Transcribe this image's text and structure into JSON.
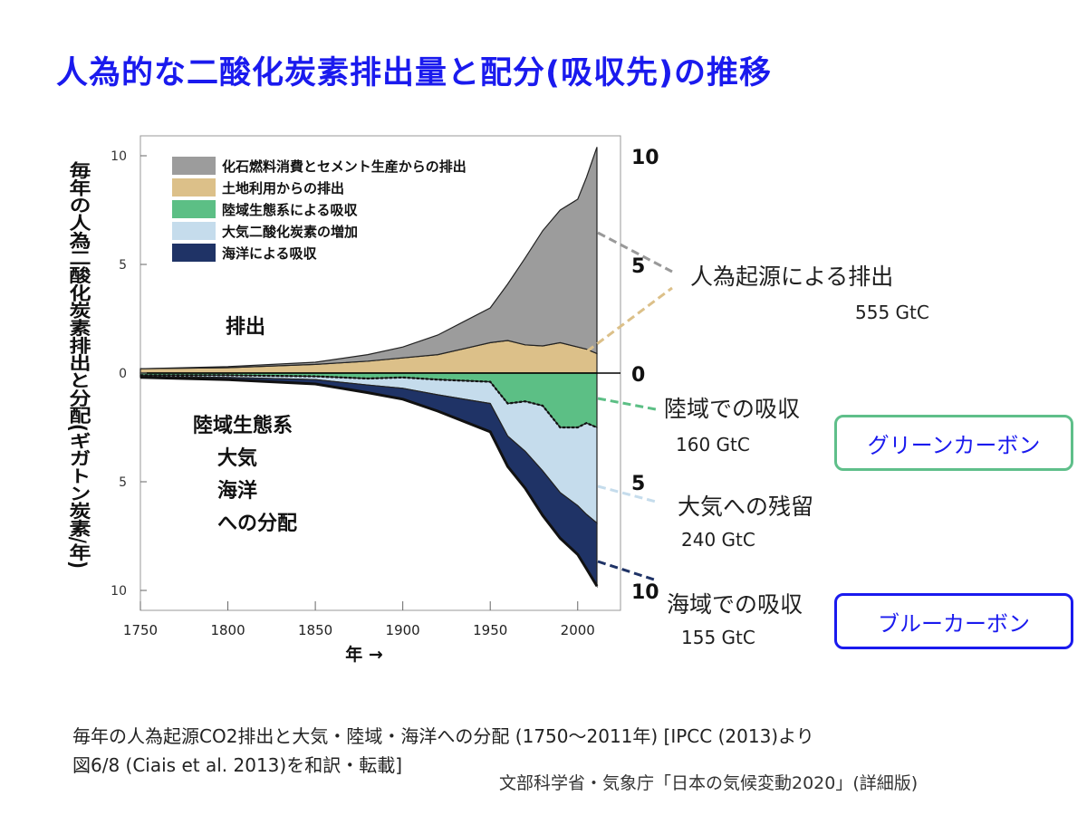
{
  "title": "人為的な二酸化炭素排出量と配分(吸収先)の推移",
  "chart_data": {
    "type": "area",
    "ylabel": "毎年の人為二酸化炭素排出と分配(ギガトン炭素/年)",
    "xlabel": "年 →",
    "xlim": [
      1750,
      2011
    ],
    "ylim": [
      -10,
      10
    ],
    "x_ticks": [
      "1750",
      "1800",
      "1850",
      "1900",
      "1950",
      "2000"
    ],
    "y_ticks_left": [
      "10",
      "5",
      "0",
      "5",
      "10"
    ],
    "y_ticks_right": [
      "10",
      "5",
      "0",
      "5",
      "10"
    ],
    "legend": [
      {
        "label": "化石燃料消費とセメント生産からの排出",
        "color": "#9c9c9c"
      },
      {
        "label": "土地利用からの排出",
        "color": "#dcc089"
      },
      {
        "label": "陸域生態系による吸収",
        "color": "#5cbf85"
      },
      {
        "label": "大気二酸化炭素の増加",
        "color": "#c5dcec"
      },
      {
        "label": "海洋による吸収",
        "color": "#1f3366"
      }
    ],
    "legend_position": "top-left",
    "region_labels": {
      "emission": "排出",
      "allocation": [
        "陸域生態系",
        "大気",
        "海洋",
        "への分配"
      ]
    },
    "x": [
      1750,
      1800,
      1850,
      1880,
      1900,
      1920,
      1950,
      1960,
      1970,
      1980,
      1990,
      2000,
      2005,
      2011
    ],
    "series": [
      {
        "name": "化石燃料消費とセメント生産からの排出",
        "values": [
          0.0,
          0.05,
          0.1,
          0.3,
          0.5,
          0.9,
          1.6,
          2.6,
          4.0,
          5.3,
          6.1,
          6.8,
          7.9,
          9.5
        ]
      },
      {
        "name": "土地利用からの排出",
        "values": [
          0.2,
          0.25,
          0.4,
          0.55,
          0.7,
          0.85,
          1.4,
          1.5,
          1.3,
          1.25,
          1.4,
          1.2,
          1.1,
          0.9
        ]
      },
      {
        "name": "陸域生態系による吸収",
        "values": [
          -0.1,
          -0.1,
          -0.15,
          -0.25,
          -0.2,
          -0.3,
          -0.4,
          -1.4,
          -1.3,
          -1.5,
          -2.5,
          -2.5,
          -2.3,
          -2.5
        ]
      },
      {
        "name": "大気二酸化炭素の増加",
        "values": [
          -0.05,
          -0.1,
          -0.15,
          -0.3,
          -0.5,
          -0.7,
          -1.0,
          -1.5,
          -2.3,
          -3.0,
          -3.0,
          -3.6,
          -4.2,
          -4.4
        ]
      },
      {
        "name": "海洋による吸収",
        "values": [
          -0.05,
          -0.1,
          -0.2,
          -0.35,
          -0.5,
          -0.75,
          -1.3,
          -1.4,
          -1.7,
          -2.05,
          -2.1,
          -2.25,
          -2.5,
          -2.9
        ]
      }
    ],
    "annotations": [
      {
        "label": "人為起源による排出",
        "value": "555 GtC"
      },
      {
        "label": "陸域での吸収",
        "value": "160 GtC",
        "tag": "グリーンカーボン"
      },
      {
        "label": "大気への残留",
        "value": "240 GtC"
      },
      {
        "label": "海域での吸収",
        "value": "155 GtC",
        "tag": "ブルーカーボン"
      }
    ]
  },
  "caption_line1": "毎年の人為起源CO2排出と大気・陸域・海洋への分配 (1750〜2011年) [IPCC (2013)より",
  "caption_line2": "図6/8 (Ciais et al. 2013)を和訳・転載]",
  "source": "文部科学省・気象庁「日本の気候変動2020」(詳細版)"
}
